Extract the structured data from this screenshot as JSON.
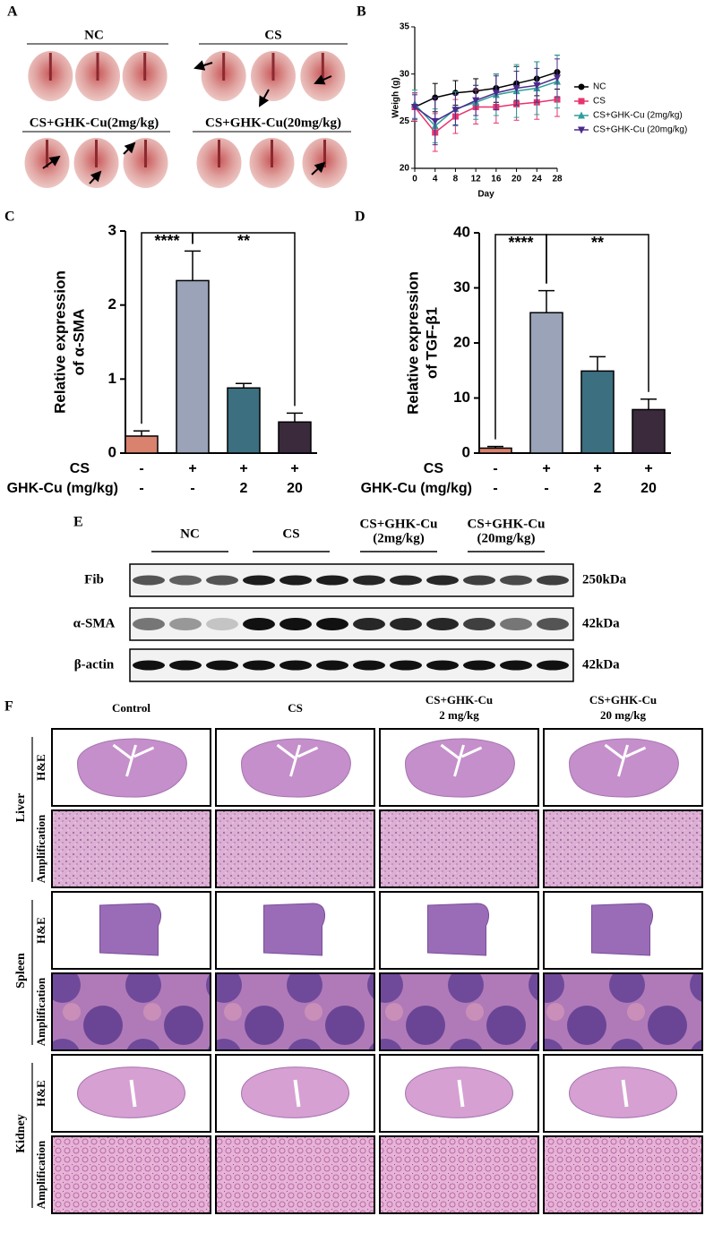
{
  "panel_labels": [
    "A",
    "B",
    "C",
    "D",
    "E",
    "F"
  ],
  "gross": {
    "groups": [
      "NC",
      "CS",
      "CS+GHK-Cu(2mg/kg)",
      "CS+GHK-Cu(20mg/kg)"
    ]
  },
  "chart_data": [
    {
      "type": "line",
      "xlabel": "Day",
      "ylabel": "Weigh (g)",
      "x": [
        0,
        4,
        8,
        12,
        16,
        20,
        24,
        28
      ],
      "xlim": [
        0,
        28
      ],
      "xticks": [
        0,
        4,
        8,
        12,
        16,
        20,
        24,
        28
      ],
      "ylim": [
        20,
        35
      ],
      "yticks": [
        20,
        25,
        30,
        35
      ],
      "legend": "right",
      "series": [
        {
          "name": "NC",
          "color": "#000000",
          "marker": "circle",
          "values": [
            26.5,
            27.5,
            28,
            28.2,
            28.5,
            29,
            29.5,
            30.2
          ],
          "errors": [
            1.5,
            1.5,
            1.3,
            1.3,
            1.5,
            1.8,
            1.8,
            1.8
          ]
        },
        {
          "name": "CS",
          "color": "#e8336e",
          "marker": "square",
          "values": [
            26.5,
            23.8,
            25.5,
            26.5,
            26.5,
            26.8,
            27,
            27.3
          ],
          "errors": [
            1.5,
            2,
            1.8,
            1.8,
            1.7,
            1.7,
            1.8,
            1.8
          ]
        },
        {
          "name": "CS+GHK-Cu (2mg/kg)",
          "color": "#2e9e9a",
          "marker": "triangle-up",
          "values": [
            26.8,
            24.5,
            26.3,
            27,
            27.8,
            28.2,
            28.5,
            29.2
          ],
          "errors": [
            1.5,
            1.8,
            1.8,
            1.8,
            2.2,
            2.8,
            2.8,
            2.8
          ]
        },
        {
          "name": "CS+GHK-Cu (20mg/kg)",
          "color": "#4b2a8c",
          "marker": "triangle-down",
          "values": [
            26.5,
            25,
            26.2,
            27.2,
            28,
            28.5,
            28.8,
            29.6
          ],
          "errors": [
            1.3,
            2.5,
            1.6,
            1.6,
            1.8,
            1.8,
            1.8,
            2
          ]
        }
      ]
    },
    {
      "type": "bar",
      "ylabel": [
        "Relative expression",
        "of α-SMA"
      ],
      "values": [
        0.23,
        2.33,
        0.88,
        0.42
      ],
      "errors": [
        0.07,
        0.4,
        0.06,
        0.12
      ],
      "colors": [
        "#d9826e",
        "#9aa3b8",
        "#3c6f80",
        "#3a2a3c"
      ],
      "ylim": [
        0,
        3
      ],
      "yticks": [
        0,
        1,
        2,
        3
      ],
      "conditions": [
        {
          "label": "CS",
          "values": [
            "-",
            "+",
            "+",
            "+"
          ]
        },
        {
          "label": "GHK-Cu (mg/kg)",
          "values": [
            "-",
            "-",
            "2",
            "20"
          ]
        }
      ],
      "significance": [
        {
          "text": "****",
          "between": [
            0,
            1
          ]
        },
        {
          "text": "**",
          "between": [
            1,
            3
          ]
        }
      ]
    },
    {
      "type": "bar",
      "ylabel": [
        "Relative expression",
        "of TGF-β1"
      ],
      "values": [
        0.9,
        25.5,
        14.9,
        7.9
      ],
      "errors": [
        0.3,
        4,
        2.6,
        1.9
      ],
      "colors": [
        "#d9826e",
        "#9aa3b8",
        "#3c6f80",
        "#3a2a3c"
      ],
      "ylim": [
        0,
        40
      ],
      "yticks": [
        0,
        10,
        20,
        30,
        40
      ],
      "conditions": [
        {
          "label": "CS",
          "values": [
            "-",
            "+",
            "+",
            "+"
          ]
        },
        {
          "label": "GHK-Cu (mg/kg)",
          "values": [
            "-",
            "-",
            "2",
            "20"
          ]
        }
      ],
      "significance": [
        {
          "text": "****",
          "between": [
            0,
            1
          ]
        },
        {
          "text": "**",
          "between": [
            1,
            3
          ]
        }
      ]
    }
  ],
  "blot": {
    "groups": [
      [
        "NC"
      ],
      [
        "CS"
      ],
      [
        "CS+GHK-Cu",
        "(2mg/kg)"
      ],
      [
        "CS+GHK-Cu",
        "(20mg/kg)"
      ]
    ],
    "rows": [
      {
        "protein": "Fib",
        "size": "250kDa"
      },
      {
        "protein": "α-SMA",
        "size": "42kDa"
      },
      {
        "protein": "β-actin",
        "size": "42kDa"
      }
    ]
  },
  "histology": {
    "groups": [
      [
        "Control"
      ],
      [
        "CS"
      ],
      [
        "CS+GHK-Cu",
        "2 mg/kg"
      ],
      [
        "CS+GHK-Cu",
        "20 mg/kg"
      ]
    ],
    "organs": [
      "Liver",
      "Spleen",
      "Kidney"
    ],
    "stains": [
      "H&E",
      "Amplification"
    ]
  }
}
